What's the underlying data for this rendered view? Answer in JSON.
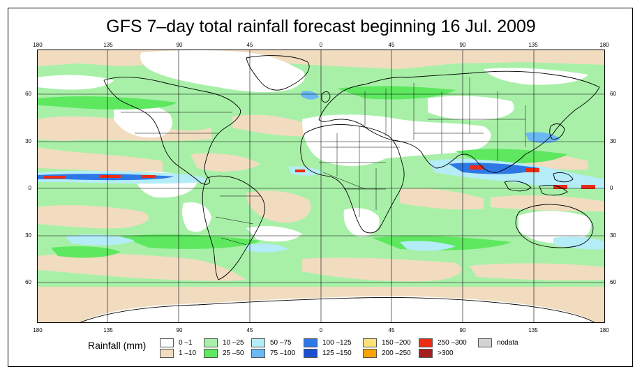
{
  "title": "GFS 7–day total rainfall forecast beginning 16 Jul. 2009",
  "axes": {
    "lon_ticks": [
      "180",
      "135",
      "90",
      "45",
      "0",
      "45",
      "90",
      "135",
      "180"
    ],
    "lat_ticks_left": [
      "60",
      "30",
      "0",
      "30",
      "60"
    ],
    "lat_ticks_right": [
      "60",
      "30",
      "0",
      "30",
      "60"
    ]
  },
  "legend": {
    "label": "Rainfall (mm)",
    "items": [
      {
        "label": "0 –1",
        "color": "#ffffff"
      },
      {
        "label": "1 –10",
        "color": "#f2dcc0"
      },
      {
        "label": "10 –25",
        "color": "#a8f0a8"
      },
      {
        "label": "25 –50",
        "color": "#5ee860"
      },
      {
        "label": "50 –75",
        "color": "#b4ecf8"
      },
      {
        "label": "75 –100",
        "color": "#6ab8f4"
      },
      {
        "label": "100 –125",
        "color": "#2e78e6"
      },
      {
        "label": "125 –150",
        "color": "#1a50d0"
      },
      {
        "label": "150 –200",
        "color": "#fce07a"
      },
      {
        "label": "200 –250",
        "color": "#f7a400"
      },
      {
        "label": "250 –300",
        "color": "#ec2c14"
      },
      {
        "label": ">300",
        "color": "#a81f1f"
      },
      {
        "label": "nodata",
        "color": "#d3d3d3"
      }
    ]
  }
}
